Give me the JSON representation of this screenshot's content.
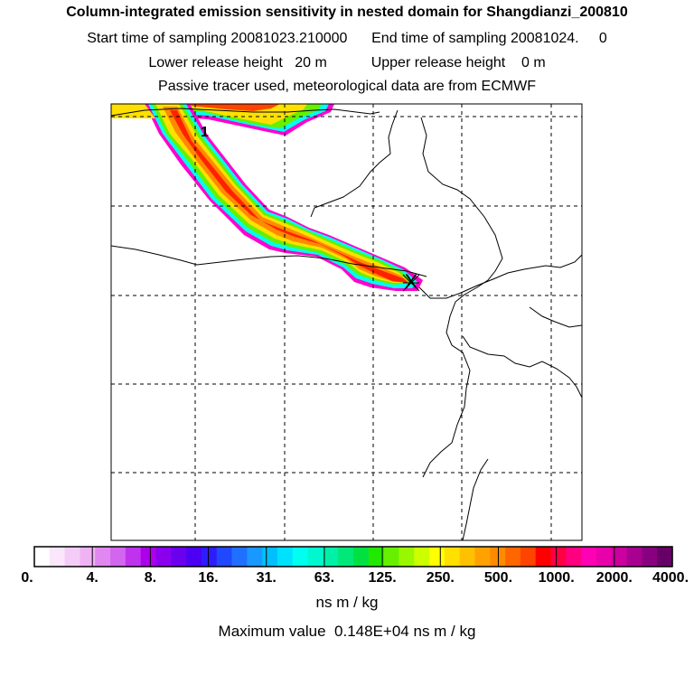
{
  "header": {
    "title": "Column-integrated emission sensitivity in nested domain for Shangdianzi_200810",
    "start_label": "Start time of sampling",
    "start_value": "20081023.210000",
    "end_label": "End time of sampling",
    "end_value": "20081024.",
    "end_extra": "0",
    "lower_label": "Lower release height",
    "lower_value": "20 m",
    "upper_label": "Upper release height",
    "upper_value": "0 m",
    "tracer_note": "Passive tracer used, meteorological data are from ECMWF"
  },
  "chart_data": {
    "type": "heatmap",
    "map_label": "1",
    "receptor_marker": "X",
    "colorbar": {
      "tick_labels": [
        "0.",
        "4.",
        "8.",
        "16.",
        "31.",
        "63.",
        "125.",
        "250.",
        "500.",
        "1000.",
        "2000.",
        "4000."
      ],
      "colors": [
        "#ffffff",
        "#fbe6fb",
        "#f5ccf7",
        "#efb3f3",
        "#e088f0",
        "#d266ee",
        "#c033ee",
        "#ad00ea",
        "#8a00ee",
        "#6a00ee",
        "#4b00f4",
        "#2e1cff",
        "#2048ff",
        "#2070ff",
        "#1a98ff",
        "#00bfff",
        "#00e0ff",
        "#00ffee",
        "#00f7d0",
        "#00f0a8",
        "#00e878",
        "#00e040",
        "#22e800",
        "#66f000",
        "#99f800",
        "#ccff00",
        "#ffff00",
        "#ffe000",
        "#ffc000",
        "#ffa200",
        "#ff8a00",
        "#ff6600",
        "#ff4400",
        "#ff0000",
        "#ff0044",
        "#ff0080",
        "#ff00b4",
        "#e800aa",
        "#cc00a0",
        "#a80090",
        "#880080",
        "#660066"
      ],
      "units": "ns m / kg"
    },
    "maximum_value_label": "Maximum value",
    "maximum_value": "0.148E+04",
    "maximum_value_units": "ns m / kg"
  }
}
